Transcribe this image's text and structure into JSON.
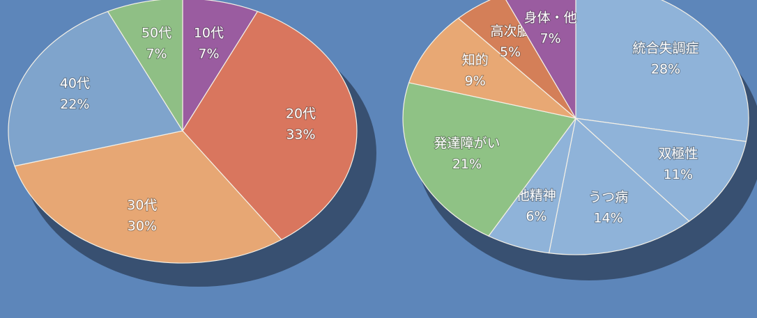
{
  "chart_data": [
    {
      "type": "pie",
      "categories": [
        "10代",
        "20代",
        "30代",
        "40代",
        "50代"
      ],
      "values": [
        7,
        33,
        30,
        22,
        7
      ],
      "value_labels": [
        "7%",
        "33%",
        "30%",
        "22%",
        "7%"
      ],
      "colors": [
        "#9a5ca0",
        "#d9765e",
        "#e7a774",
        "#7fa4cc",
        "#8fbf85"
      ]
    },
    {
      "type": "pie",
      "categories": [
        "統合失調症",
        "双極性",
        "うつ病",
        "他精神",
        "発達障がい",
        "知的",
        "高次脳",
        "身体・他"
      ],
      "values": [
        28,
        11,
        14,
        6,
        21,
        9,
        5,
        7
      ],
      "value_labels": [
        "28%",
        "11%",
        "14%",
        "6%",
        "21%",
        "9%",
        "5%",
        "7%"
      ],
      "colors": [
        "#8fb3d9",
        "#8fb3d9",
        "#8fb3d9",
        "#8fb3d9",
        "#8fc285",
        "#e8a874",
        "#d47f58",
        "#9a5ca0"
      ]
    }
  ]
}
